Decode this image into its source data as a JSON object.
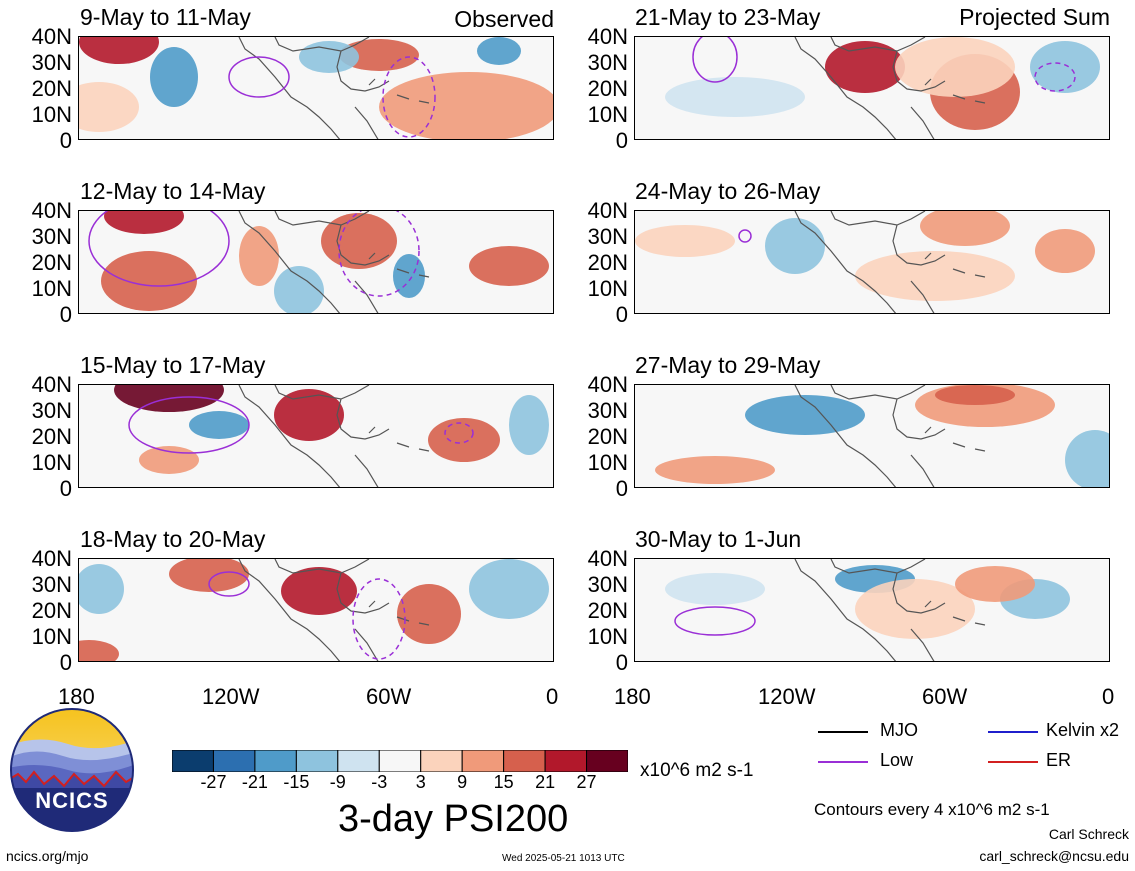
{
  "panels_left": [
    {
      "title": "9-May to 11-May",
      "tag": "Observed"
    },
    {
      "title": "12-May to 14-May",
      "tag": ""
    },
    {
      "title": "15-May to 17-May",
      "tag": ""
    },
    {
      "title": "18-May to 20-May",
      "tag": ""
    }
  ],
  "panels_right": [
    {
      "title": "21-May to 23-May",
      "tag": "Projected Sum"
    },
    {
      "title": "24-May to 26-May",
      "tag": ""
    },
    {
      "title": "27-May to 29-May",
      "tag": ""
    },
    {
      "title": "30-May to 1-Jun",
      "tag": ""
    }
  ],
  "lat_labels": [
    "40N",
    "30N",
    "20N",
    "10N",
    "0"
  ],
  "lon_labels": [
    "180",
    "120W",
    "60W",
    "0"
  ],
  "colorbar": {
    "ticks": [
      "-27",
      "-21",
      "-15",
      "-9",
      "-3",
      "3",
      "9",
      "15",
      "21",
      "27"
    ],
    "colors": [
      "#0b3d6e",
      "#2c6fb0",
      "#4f9bc9",
      "#8ec3de",
      "#cfe3f0",
      "#f7f7f7",
      "#fbd3bc",
      "#f09a7a",
      "#d6604d",
      "#b2182b",
      "#67001f"
    ],
    "units": "x10^6 m2 s-1"
  },
  "title": "3-day PSI200",
  "legend": {
    "mjo": "MJO",
    "kelvin": "Kelvin x2",
    "low": "Low",
    "er": "ER",
    "colors": {
      "mjo": "#000000",
      "kelvin": "#1f1fcc",
      "low": "#9a2fd6",
      "er": "#d22020"
    }
  },
  "contours_note": "Contours every 4 x10^6 m2 s-1",
  "author_name": "Carl Schreck",
  "author_email": "carl_schreck@ncsu.edu",
  "site": "ncics.org/mjo",
  "timestamp": "Wed 2025-05-21 1013 UTC",
  "logo": {
    "text": "NCICS"
  }
}
